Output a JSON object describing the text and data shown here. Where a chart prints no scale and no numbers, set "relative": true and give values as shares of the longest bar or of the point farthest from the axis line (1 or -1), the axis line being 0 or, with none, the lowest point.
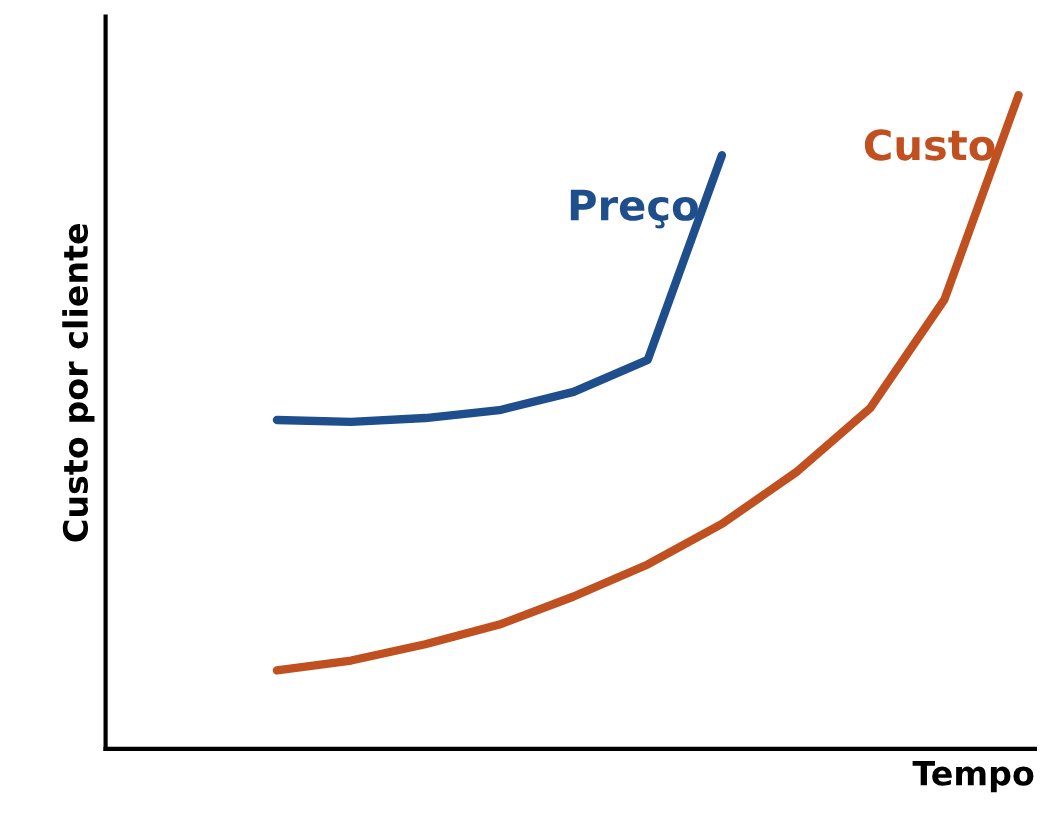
{
  "chart_data": {
    "type": "line",
    "relative": true,
    "xlabel": "Tempo",
    "ylabel": "Custo por cliente",
    "categories": [
      null,
      null,
      null,
      null,
      null,
      null,
      null,
      null,
      null,
      null,
      null
    ],
    "series": [
      {
        "name": "Preço",
        "color": "#1f4e8c",
        "values": [
          0.503,
          0.5,
          0.506,
          0.518,
          0.546,
          0.595,
          0.908,
          null,
          null,
          null,
          null
        ]
      },
      {
        "name": "Custo",
        "color": "#c0501f",
        "values": [
          0.12,
          0.135,
          0.16,
          0.19,
          0.233,
          0.282,
          0.344,
          0.423,
          0.521,
          0.687,
          1.0
        ]
      }
    ],
    "grid": false,
    "legend": false,
    "marker": "none",
    "line_style": "solid",
    "tick_labels": false
  }
}
